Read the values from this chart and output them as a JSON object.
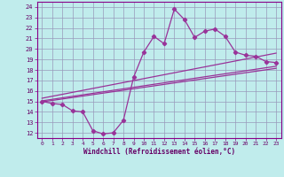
{
  "title": "",
  "xlabel": "Windchill (Refroidissement éolien,°C)",
  "bg_color": "#c0ecec",
  "line_color": "#993399",
  "grid_color": "#9999bb",
  "xlim": [
    -0.5,
    23.5
  ],
  "ylim": [
    11.5,
    24.5
  ],
  "yticks": [
    12,
    13,
    14,
    15,
    16,
    17,
    18,
    19,
    20,
    21,
    22,
    23,
    24
  ],
  "xticks": [
    0,
    1,
    2,
    3,
    4,
    5,
    6,
    7,
    8,
    9,
    10,
    11,
    12,
    13,
    14,
    15,
    16,
    17,
    18,
    19,
    20,
    21,
    22,
    23
  ],
  "jagged_x": [
    0,
    1,
    2,
    3,
    4,
    5,
    6,
    7,
    8,
    9,
    10,
    11,
    12,
    13,
    14,
    15,
    16,
    17,
    18,
    19,
    20,
    21,
    22,
    23
  ],
  "jagged_y": [
    15.0,
    14.8,
    14.7,
    14.1,
    14.0,
    12.2,
    11.9,
    12.0,
    13.2,
    17.3,
    19.7,
    21.2,
    20.5,
    23.8,
    22.8,
    21.1,
    21.7,
    21.9,
    21.2,
    19.7,
    19.4,
    19.3,
    18.8,
    18.7
  ],
  "line1_x": [
    0,
    23
  ],
  "line1_y": [
    15.05,
    18.35
  ],
  "line2_x": [
    0,
    23
  ],
  "line2_y": [
    15.3,
    19.6
  ],
  "line3_x": [
    0,
    23
  ],
  "line3_y": [
    14.95,
    18.15
  ]
}
